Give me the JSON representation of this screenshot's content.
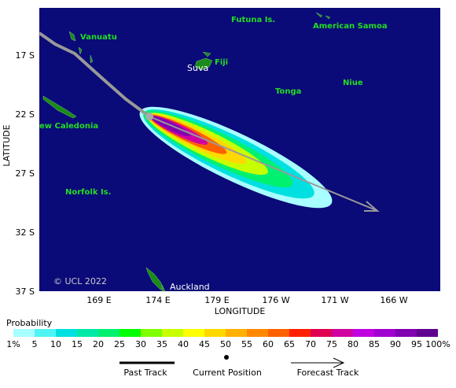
{
  "map": {
    "y_axis_label": "LATITUDE",
    "x_axis_label": "LONGITUDE",
    "yticks": [
      "17 S",
      "22 S",
      "27 S",
      "32 S",
      "37 S"
    ],
    "xticks": [
      "169 E",
      "174 E",
      "179 E",
      "176 W",
      "171 W",
      "166 W"
    ],
    "places": [
      "Futuna Is.",
      "American Samoa",
      "Vanuatu",
      "Fiji",
      "Suva",
      "Niue",
      "Tonga",
      "ew Caledonia",
      "Norfolk Is.",
      "Auckland"
    ],
    "copyright": "© UCL 2022"
  },
  "colorbar": {
    "title": "Probability",
    "labels": [
      "1%",
      "5",
      "10",
      "15",
      "20",
      "25",
      "30",
      "35",
      "40",
      "45",
      "50",
      "55",
      "60",
      "65",
      "70",
      "75",
      "80",
      "85",
      "90",
      "95",
      "100%"
    ],
    "colors": [
      "#a8ffff",
      "#50f4f4",
      "#00e0e0",
      "#00e8a8",
      "#00f070",
      "#00ff00",
      "#80ff00",
      "#c8ff00",
      "#ffff00",
      "#ffd800",
      "#ffb000",
      "#ff8800",
      "#ff6000",
      "#ff2000",
      "#e00050",
      "#d000a0",
      "#c000e0",
      "#a000d0",
      "#8000b0",
      "#600090"
    ]
  },
  "legend": {
    "past": "Past Track",
    "current": "Current Position",
    "forecast": "Forecast Track"
  }
}
